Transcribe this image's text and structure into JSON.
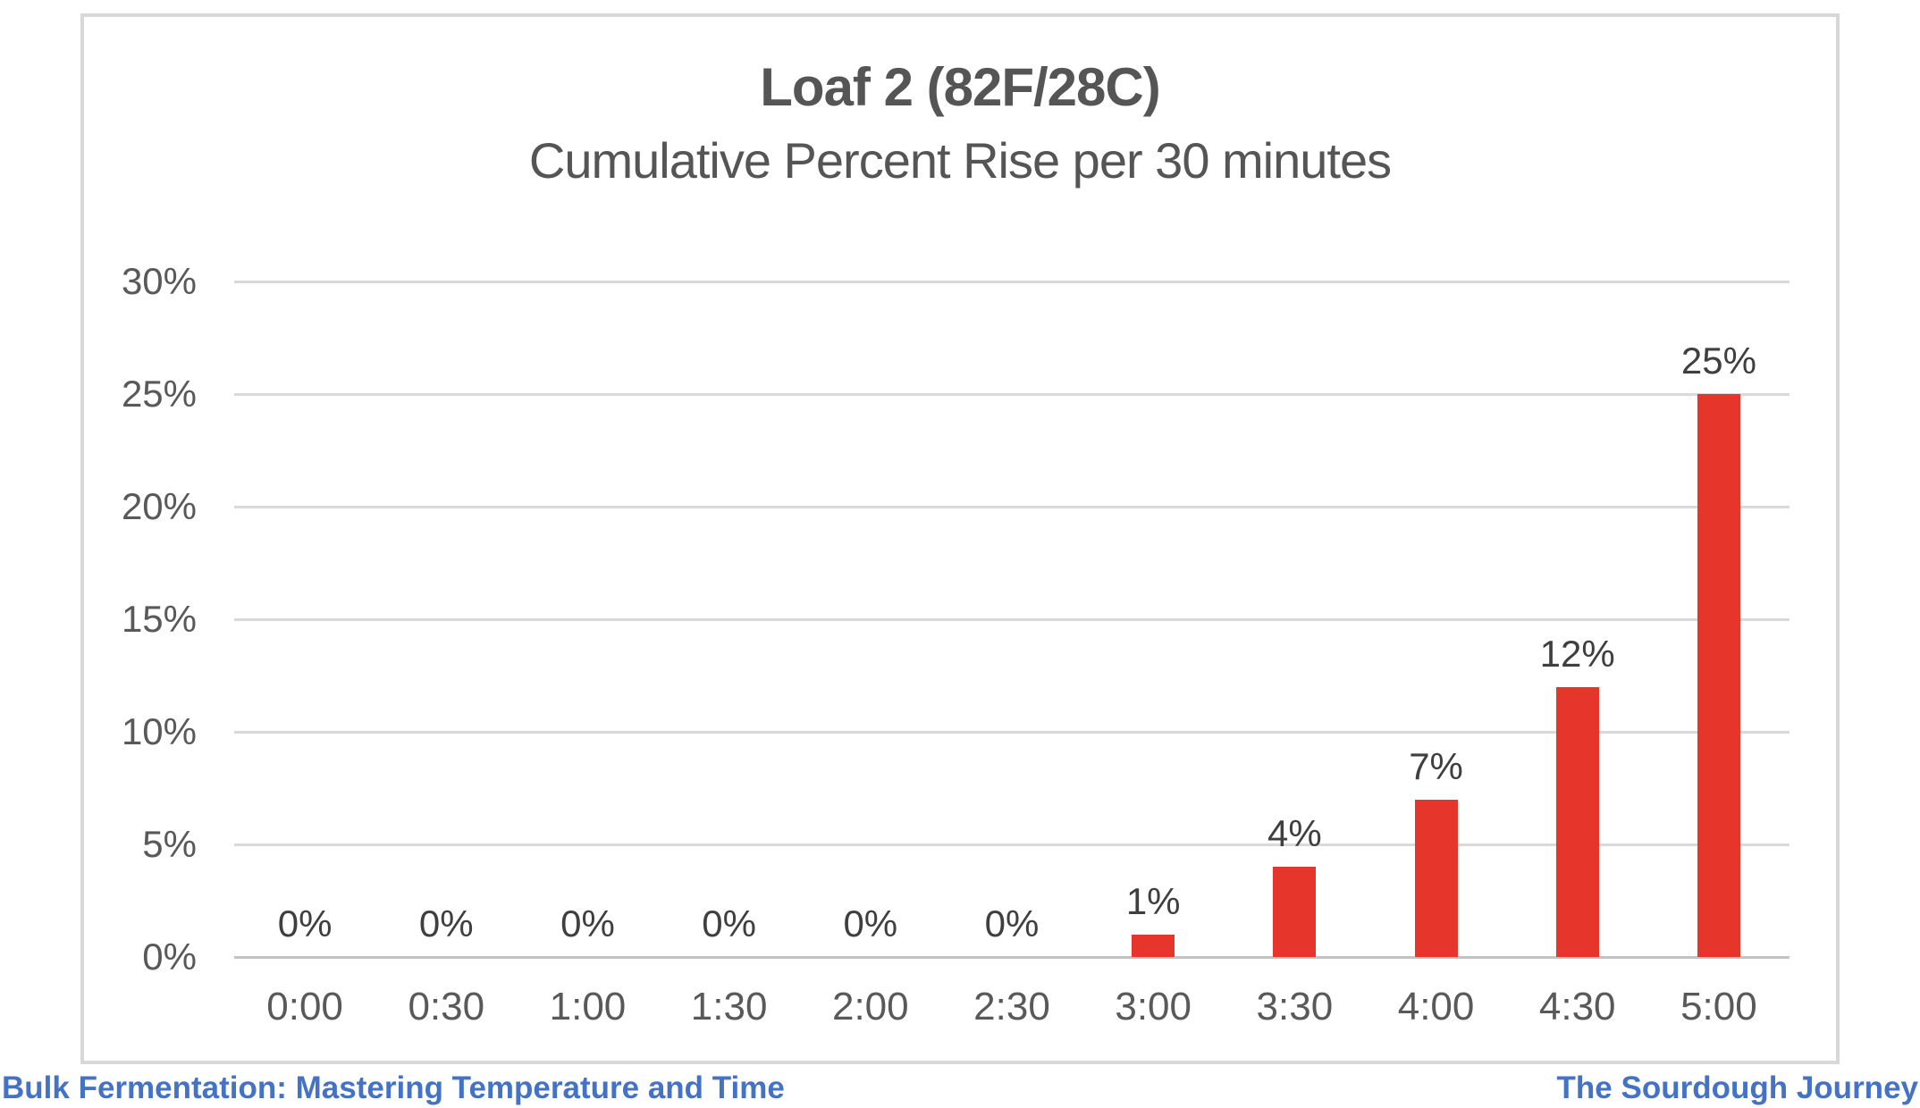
{
  "chart": {
    "title": "Loaf 2 (82F/28C)",
    "subtitle": "Cumulative Percent Rise per 30 minutes"
  },
  "footer": {
    "left": "Bulk Fermentation: Mastering Temperature and Time",
    "right": "The Sourdough Journey"
  },
  "colors": {
    "bar": "#e6352a",
    "axis_text": "#595959",
    "data_label": "#3f3f3f",
    "gridline": "#d9d9d9",
    "axis_line": "#c3c3c3",
    "frame_border": "#d8d8d8",
    "footer_blue": "#4472c4",
    "title_text": "#555555"
  },
  "chart_data": {
    "type": "bar",
    "title": "Loaf 2 (82F/28C)",
    "subtitle": "Cumulative Percent Rise per 30 minutes",
    "categories": [
      "0:00",
      "0:30",
      "1:00",
      "1:30",
      "2:00",
      "2:30",
      "3:00",
      "3:30",
      "4:00",
      "4:30",
      "5:00"
    ],
    "values": [
      0,
      0,
      0,
      0,
      0,
      0,
      1,
      4,
      7,
      12,
      25
    ],
    "data_labels": [
      "0%",
      "0%",
      "0%",
      "0%",
      "0%",
      "0%",
      "1%",
      "4%",
      "7%",
      "12%",
      "25%"
    ],
    "y_ticks": [
      "30%",
      "25%",
      "20%",
      "15%",
      "10%",
      "5%",
      "0%"
    ],
    "ylim": [
      0,
      30
    ],
    "xlabel": "",
    "ylabel": "",
    "grid": true,
    "legend": false,
    "bar_color": "#e6352a"
  }
}
